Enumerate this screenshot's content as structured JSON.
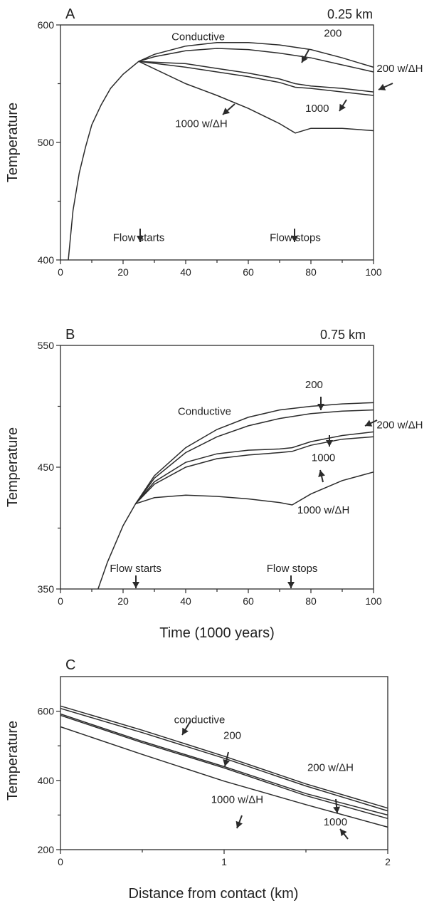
{
  "chart_data": [
    {
      "type": "line",
      "panel": "A",
      "title": "0.25 km",
      "xlabel": "",
      "ylabel": "Temperature",
      "xlim": [
        0,
        100
      ],
      "ylim": [
        400,
        600
      ],
      "x_ticks": [
        0,
        20,
        40,
        60,
        80,
        100
      ],
      "y_ticks": [
        400,
        500,
        600
      ],
      "series": [
        {
          "name": "Conductive",
          "x": [
            2.5,
            4,
            6,
            8,
            10,
            13,
            16,
            20,
            25,
            30,
            40,
            50,
            60,
            70,
            80,
            90,
            100
          ],
          "y": [
            400,
            442,
            474,
            496,
            515,
            532,
            546,
            558,
            569,
            575,
            582,
            585,
            585,
            583,
            579,
            572,
            564
          ]
        },
        {
          "name": "200",
          "x": [
            25,
            30,
            40,
            50,
            60,
            70,
            80,
            90,
            100
          ],
          "y": [
            569,
            573,
            578,
            580,
            579,
            576,
            572,
            566,
            560
          ]
        },
        {
          "name": "200 w/ΔH",
          "x": [
            25,
            40,
            50,
            60,
            70,
            75,
            80,
            90,
            100
          ],
          "y": [
            569,
            567,
            563,
            559,
            554,
            550,
            548,
            546,
            543
          ]
        },
        {
          "name": "1000",
          "x": [
            25,
            40,
            50,
            60,
            70,
            75,
            80,
            90,
            100
          ],
          "y": [
            569,
            564,
            560,
            556,
            551,
            547,
            546,
            543,
            540
          ]
        },
        {
          "name": "1000 w/ΔH",
          "x": [
            25,
            40,
            50,
            60,
            70,
            75,
            80,
            90,
            100
          ],
          "y": [
            569,
            550,
            540,
            529,
            516,
            508,
            512,
            512,
            510
          ]
        }
      ],
      "annotations": [
        {
          "text": "Conductive",
          "x": 44,
          "y": 587
        },
        {
          "text": "200",
          "x": 87,
          "y": 590
        },
        {
          "text": "200 w/ΔH",
          "x": 101,
          "y": 560
        },
        {
          "text": "1000",
          "x": 82,
          "y": 526
        },
        {
          "text": "1000 w/ΔH",
          "x": 45,
          "y": 513
        },
        {
          "text": "Flow starts",
          "x": 25,
          "y": 416
        },
        {
          "text": "Flow stops",
          "x": 75,
          "y": 416
        }
      ]
    },
    {
      "type": "line",
      "panel": "B",
      "title": "0.75 km",
      "xlabel": "Time (1000 years)",
      "ylabel": "Temperature",
      "xlim": [
        0,
        100
      ],
      "ylim": [
        350,
        550
      ],
      "x_ticks": [
        0,
        20,
        40,
        60,
        80,
        100
      ],
      "y_ticks": [
        350,
        450,
        550
      ],
      "series": [
        {
          "name": "Conductive",
          "x": [
            12,
            15,
            20,
            24,
            30,
            40,
            50,
            60,
            70,
            80,
            90,
            100
          ],
          "y": [
            350,
            372,
            402,
            420,
            443,
            466,
            481,
            491,
            497,
            500,
            502,
            503
          ]
        },
        {
          "name": "200",
          "x": [
            24,
            30,
            40,
            50,
            60,
            70,
            80,
            90,
            100
          ],
          "y": [
            420,
            441,
            462,
            475,
            484,
            490,
            494,
            496,
            497
          ]
        },
        {
          "name": "200 w/ΔH",
          "x": [
            24,
            30,
            40,
            50,
            60,
            70,
            74,
            80,
            90,
            100
          ],
          "y": [
            420,
            438,
            454,
            461,
            464,
            465,
            466,
            471,
            476,
            479
          ]
        },
        {
          "name": "1000",
          "x": [
            24,
            30,
            40,
            50,
            60,
            70,
            74,
            80,
            90,
            100
          ],
          "y": [
            420,
            436,
            450,
            457,
            460,
            462,
            463,
            468,
            473,
            475
          ]
        },
        {
          "name": "1000 w/ΔH",
          "x": [
            24,
            30,
            40,
            50,
            60,
            70,
            74,
            80,
            90,
            100
          ],
          "y": [
            420,
            425,
            427,
            426,
            424,
            421,
            419,
            428,
            439,
            446
          ]
        }
      ],
      "annotations": [
        {
          "text": "Conductive",
          "x": 46,
          "y": 493
        },
        {
          "text": "200",
          "x": 81,
          "y": 515
        },
        {
          "text": "200 w/ΔH",
          "x": 101,
          "y": 482
        },
        {
          "text": "1000",
          "x": 84,
          "y": 455
        },
        {
          "text": "1000 w/ΔH",
          "x": 84,
          "y": 412
        },
        {
          "text": "Flow starts",
          "x": 24,
          "y": 364
        },
        {
          "text": "Flow stops",
          "x": 74,
          "y": 364
        }
      ]
    },
    {
      "type": "line",
      "panel": "C",
      "title": "",
      "xlabel": "Distance from contact (km)",
      "ylabel": "Temperature",
      "xlim": [
        0,
        2
      ],
      "ylim": [
        200,
        700
      ],
      "x_ticks": [
        0,
        1,
        2
      ],
      "y_ticks": [
        200,
        400,
        600
      ],
      "series": [
        {
          "name": "conductive",
          "x": [
            0,
            0.5,
            1,
            1.5,
            2
          ],
          "y": [
            615,
            545,
            470,
            390,
            320
          ]
        },
        {
          "name": "200",
          "x": [
            0,
            0.5,
            1,
            1.5,
            2
          ],
          "y": [
            608,
            538,
            464,
            384,
            312
          ]
        },
        {
          "name": "200 w/ΔH",
          "x": [
            0,
            0.5,
            1,
            1.5,
            2
          ],
          "y": [
            592,
            513,
            440,
            362,
            300
          ]
        },
        {
          "name": "1000",
          "x": [
            0,
            0.5,
            1,
            1.5,
            2
          ],
          "y": [
            588,
            509,
            436,
            356,
            290
          ]
        },
        {
          "name": "1000 w/ΔH",
          "x": [
            0,
            0.5,
            1,
            1.5,
            2
          ],
          "y": [
            555,
            475,
            398,
            330,
            265
          ]
        }
      ],
      "annotations": [
        {
          "text": "conductive",
          "x": 0.85,
          "y": 565
        },
        {
          "text": "200",
          "x": 1.05,
          "y": 520
        },
        {
          "text": "200 w/ΔH",
          "x": 1.65,
          "y": 427
        },
        {
          "text": "1000 w/ΔH",
          "x": 1.08,
          "y": 335
        },
        {
          "text": "1000",
          "x": 1.68,
          "y": 270
        }
      ]
    }
  ]
}
